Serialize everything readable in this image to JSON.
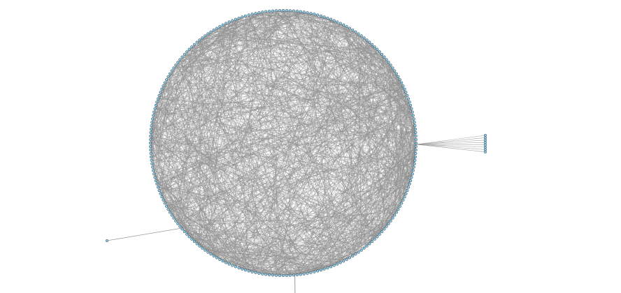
{
  "graph": {
    "layout": "circular",
    "ring_node_count": 240,
    "internal_edge_count": 1400,
    "fan_node_count": 8,
    "pendant_node_count": 2,
    "colors": {
      "background": "#ffffff",
      "edge": "#8f8f8f",
      "node_fill": "#87cdee",
      "node_stroke": "#1a1a1a"
    }
  }
}
